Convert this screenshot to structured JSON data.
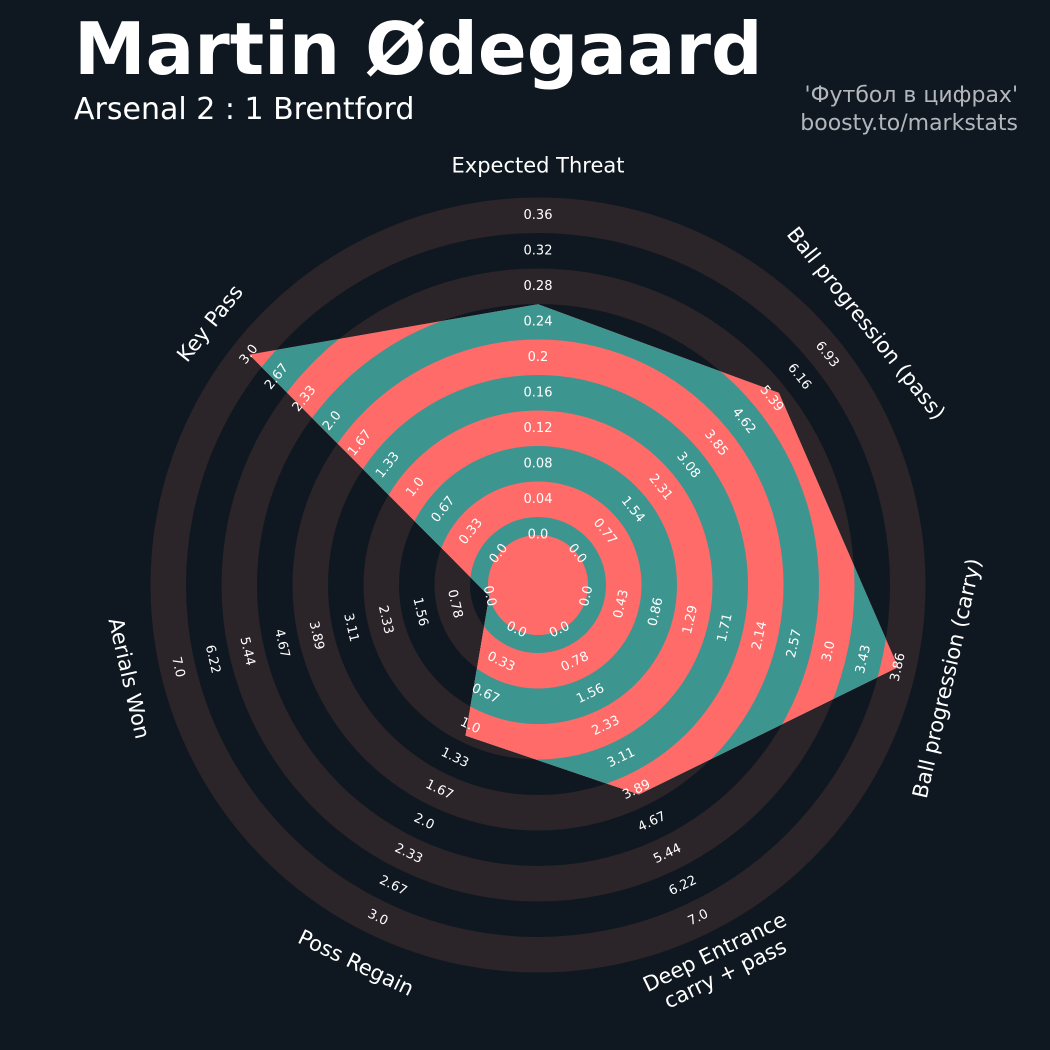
{
  "header": {
    "title": "Martin Ødegaard",
    "subtitle": "Arsenal 2 : 1 Brentford",
    "credit_line1": "'Футбол в цифрах'",
    "credit_line2": "boosty.to/markstats"
  },
  "colors": {
    "background": "#0f1820",
    "ring_outer": "#2b2428",
    "data_ring_a": "#ff6b68",
    "data_ring_b": "#3d9590",
    "text": "#ffffff"
  },
  "chart_data": {
    "type": "radar",
    "params": [
      "Expected Threat",
      "Ball progression (pass)",
      "Ball progression (carry)",
      "Deep Entrance\ncarry + pass",
      "Poss Regain",
      "Aerials Won",
      "Key Pass"
    ],
    "ranges": [
      [
        0,
        0.36
      ],
      [
        0,
        6.93
      ],
      [
        0,
        3.86
      ],
      [
        0,
        7.0
      ],
      [
        0,
        3.0
      ],
      [
        0,
        7.0
      ],
      [
        0,
        3.0
      ]
    ],
    "ring_labels": [
      [
        "0.0",
        "0.04",
        "0.08",
        "0.12",
        "0.16",
        "0.2",
        "0.24",
        "0.28",
        "0.32",
        "0.36"
      ],
      [
        "0.0",
        "0.77",
        "1.54",
        "2.31",
        "3.08",
        "3.85",
        "4.62",
        "5.39",
        "6.16",
        "6.93"
      ],
      [
        "0.0",
        "0.43",
        "0.86",
        "1.29",
        "1.71",
        "2.14",
        "2.57",
        "3.0",
        "3.43",
        "3.86"
      ],
      [
        "0.0",
        "0.78",
        "1.56",
        "2.33",
        "3.11",
        "3.89",
        "4.67",
        "5.44",
        "6.22",
        "7.0"
      ],
      [
        "0.0",
        "0.33",
        "0.67",
        "1.0",
        "1.33",
        "1.67",
        "2.0",
        "2.33",
        "2.67",
        "3.0"
      ],
      [
        "0.0",
        "0.78",
        "1.56",
        "2.33",
        "3.11",
        "3.89",
        "4.67",
        "5.44",
        "6.22",
        "7.0"
      ],
      [
        "0.0",
        "0.33",
        "0.67",
        "1.0",
        "1.33",
        "1.67",
        "2.0",
        "2.33",
        "2.67",
        "3.0"
      ]
    ],
    "values": [
      0.26,
      5.6,
      3.86,
      4.0,
      1.1,
      0.0,
      3.0
    ]
  }
}
